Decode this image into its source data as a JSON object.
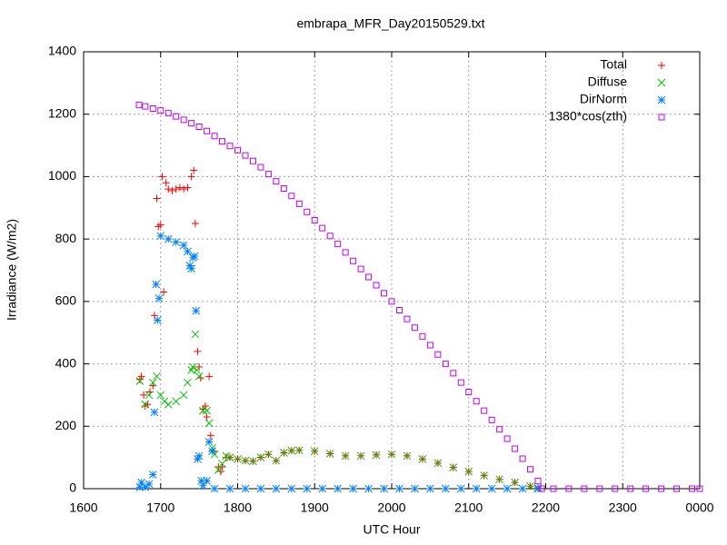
{
  "chart_data": {
    "type": "scatter",
    "title": "embrapa_MFR_Day20150529.txt",
    "x_label": "UTC Hour",
    "y_label": "Irradiance (W/m2)",
    "xlim": [
      1600,
      2400
    ],
    "ylim": [
      0,
      1400
    ],
    "xticks": [
      1600,
      1700,
      1800,
      1900,
      2000,
      2100,
      2200,
      2300,
      {
        "value": 2400,
        "label": "0000"
      }
    ],
    "yticks": [
      0,
      200,
      400,
      600,
      800,
      1000,
      1200,
      1400
    ],
    "grid": true,
    "legend": "top right",
    "series": [
      {
        "name": "Total",
        "color": "#ff0000",
        "marker": "plus",
        "x": [
          1673,
          1675,
          1678,
          1680,
          1683,
          1686,
          1690,
          1692,
          1695,
          1697,
          1700,
          1702,
          1704,
          1707,
          1710,
          1715,
          1720,
          1725,
          1730,
          1735,
          1740,
          1743,
          1745,
          1748,
          1750,
          1752,
          1755,
          1758,
          1760,
          1763,
          1765,
          1770,
          1775,
          1778,
          1780,
          1785,
          1790,
          1800,
          1810,
          1820,
          1830,
          1840,
          1850,
          1860,
          1870,
          1880,
          1900,
          1920,
          1940,
          1960,
          1980,
          2000,
          2020,
          2040,
          2060,
          2080,
          2100,
          2120,
          2140,
          2160,
          2180,
          2190
        ],
        "values": [
          350,
          360,
          300,
          265,
          270,
          310,
          330,
          555,
          930,
          840,
          845,
          1000,
          630,
          980,
          960,
          955,
          960,
          965,
          960,
          965,
          1000,
          1020,
          850,
          440,
          390,
          355,
          255,
          265,
          230,
          360,
          170,
          120,
          70,
          55,
          70,
          100,
          100,
          95,
          90,
          88,
          100,
          110,
          90,
          115,
          122,
          123,
          120,
          112,
          105,
          105,
          108,
          110,
          105,
          95,
          82,
          68,
          55,
          42,
          30,
          20,
          8,
          3
        ]
      },
      {
        "name": "Diffuse",
        "color": "#00c000",
        "marker": "cross",
        "x": [
          1673,
          1680,
          1685,
          1690,
          1695,
          1700,
          1705,
          1710,
          1720,
          1730,
          1735,
          1740,
          1742,
          1745,
          1747,
          1750,
          1755,
          1760,
          1763,
          1767,
          1770,
          1775,
          1780,
          1785,
          1790,
          1800,
          1810,
          1820,
          1830,
          1840,
          1850,
          1860,
          1870,
          1880,
          1900,
          1920,
          1940,
          1960,
          1980,
          2000,
          2020,
          2040,
          2060,
          2080,
          2100,
          2120,
          2140,
          2160,
          2180,
          2190
        ],
        "values": [
          345,
          270,
          300,
          340,
          360,
          300,
          280,
          270,
          280,
          300,
          340,
          380,
          390,
          495,
          380,
          360,
          250,
          250,
          210,
          130,
          110,
          60,
          80,
          105,
          100,
          95,
          90,
          88,
          100,
          110,
          90,
          115,
          122,
          123,
          120,
          112,
          105,
          105,
          108,
          110,
          105,
          95,
          82,
          68,
          55,
          42,
          30,
          20,
          8,
          3
        ]
      },
      {
        "name": "DirNorm",
        "color": "#0080ff",
        "marker": "star",
        "x": [
          1673,
          1675,
          1680,
          1685,
          1690,
          1692,
          1694,
          1696,
          1698,
          1700,
          1710,
          1720,
          1730,
          1735,
          1738,
          1740,
          1742,
          1744,
          1746,
          1748,
          1750,
          1753,
          1755,
          1760,
          1763,
          1767,
          1770,
          1790,
          1810,
          1830,
          1850,
          1870,
          1890,
          1910,
          1930,
          1950,
          1970,
          1990,
          2010,
          2030,
          2050,
          2070,
          2090,
          2110,
          2130,
          2150,
          2170,
          2190
        ],
        "values": [
          5,
          20,
          5,
          15,
          45,
          245,
          655,
          540,
          610,
          810,
          800,
          790,
          780,
          760,
          715,
          705,
          740,
          745,
          570,
          95,
          105,
          25,
          10,
          25,
          150,
          120,
          0,
          0,
          0,
          0,
          0,
          0,
          0,
          0,
          0,
          0,
          0,
          0,
          0,
          0,
          0,
          0,
          0,
          0,
          0,
          0,
          0,
          0
        ]
      },
      {
        "name": "1380*cos(zth)",
        "color": "#c000ff",
        "marker": "square",
        "x": [
          1672,
          1680,
          1690,
          1700,
          1710,
          1720,
          1730,
          1740,
          1750,
          1760,
          1770,
          1780,
          1790,
          1800,
          1810,
          1820,
          1830,
          1840,
          1850,
          1860,
          1870,
          1880,
          1890,
          1900,
          1910,
          1920,
          1930,
          1940,
          1950,
          1960,
          1970,
          1980,
          1990,
          2000,
          2010,
          2020,
          2030,
          2040,
          2050,
          2060,
          2070,
          2080,
          2090,
          2100,
          2110,
          2120,
          2130,
          2140,
          2150,
          2160,
          2170,
          2180,
          2190,
          2195,
          2210,
          2230,
          2250,
          2270,
          2290,
          2310,
          2330,
          2350,
          2370,
          2390,
          2400
        ],
        "values": [
          1230,
          1225,
          1218,
          1212,
          1203,
          1193,
          1182,
          1171,
          1160,
          1146,
          1130,
          1113,
          1098,
          1085,
          1068,
          1050,
          1030,
          1008,
          985,
          962,
          938,
          913,
          887,
          860,
          835,
          810,
          784,
          757,
          730,
          704,
          678,
          652,
          626,
          600,
          572,
          544,
          516,
          488,
          460,
          430,
          400,
          370,
          340,
          310,
          280,
          250,
          220,
          190,
          160,
          128,
          96,
          62,
          25,
          0,
          0,
          0,
          0,
          0,
          0,
          0,
          0,
          0,
          0,
          0,
          0
        ]
      }
    ]
  }
}
